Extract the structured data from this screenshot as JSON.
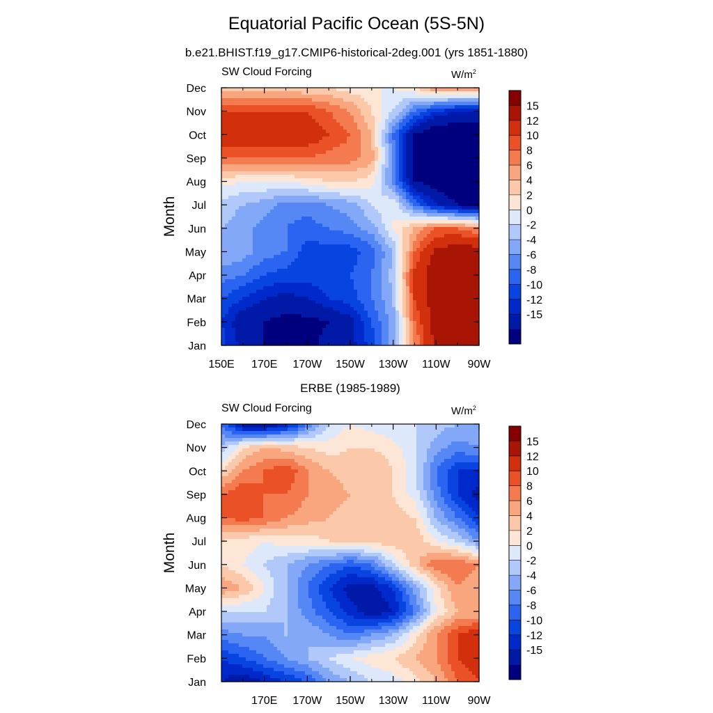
{
  "figure": {
    "title": "Equatorial Pacific Ocean (5S-5N)",
    "subtitle": "b.e21.BHIST.f19_g17.CMIP6-historical-2deg.001 (yrs 1851-1880)"
  },
  "palette": [
    "#00007f",
    "#0019a6",
    "#0029cc",
    "#0844e0",
    "#2b64f0",
    "#5587f5",
    "#84a8f8",
    "#b1c8fa",
    "#dde8fb",
    "#fde6d6",
    "#fcc8aa",
    "#f9a57e",
    "#f47b50",
    "#ea5126",
    "#d22f0c",
    "#a91504",
    "#850000"
  ],
  "chart_data": [
    {
      "type": "heatmap",
      "title": "",
      "left_string": "SW Cloud Forcing",
      "right_string": "W/m",
      "right_string_sup": "2",
      "ylabel": "Month",
      "xlabel": "",
      "x_ticks": [
        "150E",
        "170E",
        "170W",
        "150W",
        "130W",
        "110W",
        "90W"
      ],
      "x_tick_values": [
        150,
        170,
        190,
        210,
        230,
        250,
        270
      ],
      "xlim": [
        150,
        270
      ],
      "y_ticks": [
        "Jan",
        "Feb",
        "Mar",
        "Apr",
        "May",
        "Jun",
        "Jul",
        "Aug",
        "Sep",
        "Oct",
        "Nov",
        "Dec"
      ],
      "colorbar_levels": [
        -15,
        -12,
        -10,
        -8,
        -6,
        -4,
        -2,
        0,
        2,
        4,
        6,
        8,
        10,
        12,
        15
      ],
      "colorbar_labels": [
        "15",
        "12",
        "10",
        "8",
        "6",
        "4",
        "2",
        "0",
        "-2",
        "-4",
        "-6",
        "-8",
        "-10",
        "-12",
        "-15"
      ],
      "x": [
        150,
        160,
        170,
        180,
        190,
        200,
        210,
        220,
        230,
        240,
        250,
        260,
        270
      ],
      "values": [
        [
          -9,
          -13,
          -15,
          -15,
          -16,
          -14,
          -13,
          -9,
          -3,
          8,
          16,
          18,
          18
        ],
        [
          -10,
          -14,
          -15,
          -16,
          -16,
          -15,
          -13,
          -8,
          -3,
          10,
          17,
          18,
          18
        ],
        [
          -8,
          -10,
          -12,
          -13,
          -12,
          -10,
          -9,
          -6,
          -2,
          12,
          17,
          19,
          19
        ],
        [
          -5,
          -6,
          -8,
          -9,
          -9,
          -9,
          -8,
          -6,
          -1,
          13,
          17,
          19,
          19
        ],
        [
          -2,
          -3,
          -5,
          -6,
          -9,
          -9,
          -9,
          -7,
          -2,
          10,
          16,
          17,
          17
        ],
        [
          -2,
          -3,
          -5,
          -6,
          -7,
          -6,
          -5,
          -3,
          2,
          6,
          10,
          10,
          8
        ],
        [
          -1,
          -2,
          -3,
          -5,
          -5,
          -4,
          -3,
          0,
          2,
          -6,
          -12,
          -15,
          -16
        ],
        [
          3,
          2,
          2,
          2,
          3,
          4,
          4,
          3,
          -5,
          -15,
          -17,
          -18,
          -18
        ],
        [
          10,
          10,
          10,
          10,
          10,
          9,
          9,
          7,
          -5,
          -17,
          -18,
          -18,
          -18
        ],
        [
          14,
          14,
          14,
          14,
          14,
          12,
          10,
          6,
          -6,
          -15,
          -18,
          -18,
          -18
        ],
        [
          12,
          12,
          12,
          12,
          12,
          10,
          8,
          4,
          0,
          -6,
          -10,
          -12,
          -12
        ],
        [
          5,
          5,
          5,
          5,
          4,
          4,
          3,
          2,
          2,
          4,
          8,
          8,
          8
        ]
      ]
    },
    {
      "type": "heatmap",
      "title": "ERBE (1985-1989)",
      "left_string": "SW Cloud Forcing",
      "right_string": "W/m",
      "right_string_sup": "2",
      "ylabel": "Month",
      "xlabel": "",
      "x_ticks": [
        "170E",
        "170W",
        "150W",
        "130W",
        "110W",
        "90W"
      ],
      "x_tick_values": [
        170,
        190,
        210,
        230,
        250,
        270
      ],
      "xlim": [
        150,
        270
      ],
      "y_ticks": [
        "Jan",
        "Feb",
        "Mar",
        "Apr",
        "May",
        "Jun",
        "Jul",
        "Aug",
        "Sep",
        "Oct",
        "Nov",
        "Dec"
      ],
      "colorbar_levels": [
        -15,
        -12,
        -10,
        -8,
        -6,
        -4,
        -2,
        0,
        2,
        4,
        6,
        8,
        10,
        12,
        15
      ],
      "colorbar_labels": [
        "15",
        "12",
        "10",
        "8",
        "6",
        "4",
        "2",
        "0",
        "-2",
        "-4",
        "-6",
        "-8",
        "-10",
        "-12",
        "-15"
      ],
      "x": [
        150,
        160,
        170,
        180,
        190,
        200,
        210,
        220,
        230,
        240,
        250,
        260,
        270
      ],
      "values": [
        [
          -12,
          -14,
          -12,
          -10,
          -8,
          -4,
          -2,
          0,
          1,
          3,
          6,
          10,
          12
        ],
        [
          -10,
          -8,
          -6,
          -4,
          -2,
          0,
          2,
          3,
          4,
          6,
          8,
          12,
          14
        ],
        [
          -5,
          -4,
          -4,
          -2,
          -2,
          -4,
          -6,
          -4,
          -2,
          3,
          8,
          12,
          14
        ],
        [
          0,
          0,
          0,
          -2,
          -5,
          -8,
          -11,
          -14,
          -12,
          -6,
          2,
          6,
          6
        ],
        [
          8,
          6,
          2,
          -2,
          -6,
          -10,
          -13,
          -13,
          -10,
          -3,
          3,
          8,
          6
        ],
        [
          4,
          2,
          0,
          -2,
          -4,
          -6,
          -8,
          -6,
          0,
          5,
          10,
          10,
          8
        ],
        [
          4,
          3,
          2,
          3,
          3,
          4,
          5,
          5,
          5,
          6,
          2,
          0,
          -4
        ],
        [
          10,
          11,
          10,
          8,
          7,
          6,
          5,
          5,
          5,
          4,
          -2,
          -6,
          -10
        ],
        [
          10,
          12,
          10,
          10,
          8,
          7,
          6,
          6,
          4,
          1,
          -5,
          -10,
          -13
        ],
        [
          4,
          8,
          10,
          12,
          8,
          6,
          5,
          6,
          4,
          1,
          -6,
          -10,
          -10
        ],
        [
          -2,
          4,
          6,
          5,
          4,
          3,
          4,
          4,
          3,
          0,
          -3,
          -5,
          -4
        ],
        [
          -6,
          -14,
          -15,
          -12,
          -6,
          0,
          2,
          1,
          0,
          0,
          -1,
          -2,
          -2
        ]
      ]
    }
  ]
}
